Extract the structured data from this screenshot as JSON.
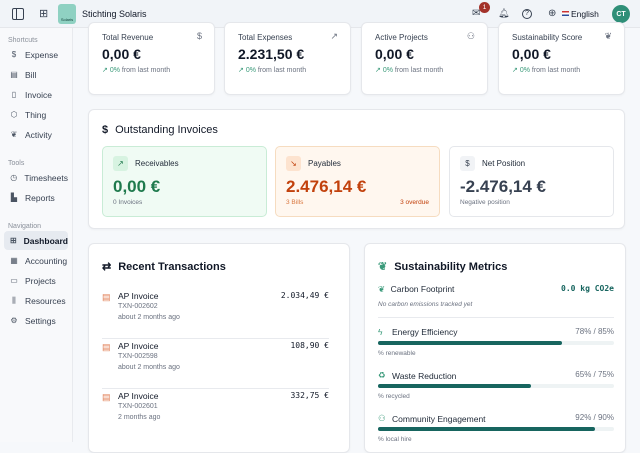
{
  "header": {
    "org_name": "Stichting Solaris",
    "logo_text": "Solaris",
    "mail_badge": "1",
    "language": "English",
    "avatar": "CT"
  },
  "sidebar": {
    "sections": [
      {
        "title": "Shortcuts",
        "items": [
          {
            "label": "Expense",
            "icon": "dollar-circle-icon"
          },
          {
            "label": "Bill",
            "icon": "bill-icon"
          },
          {
            "label": "Invoice",
            "icon": "file-icon"
          },
          {
            "label": "Thing",
            "icon": "box-icon"
          },
          {
            "label": "Activity",
            "icon": "leaf-icon"
          }
        ]
      },
      {
        "title": "Tools",
        "items": [
          {
            "label": "Timesheets",
            "icon": "clock-icon"
          },
          {
            "label": "Reports",
            "icon": "bar-chart-icon"
          }
        ]
      },
      {
        "title": "Navigation",
        "items": [
          {
            "label": "Dashboard",
            "icon": "grid-icon",
            "active": true
          },
          {
            "label": "Accounting",
            "icon": "calculator-icon"
          },
          {
            "label": "Projects",
            "icon": "folder-icon"
          },
          {
            "label": "Resources",
            "icon": "library-icon"
          },
          {
            "label": "Settings",
            "icon": "gear-icon"
          }
        ]
      }
    ]
  },
  "stats": [
    {
      "title": "Total Revenue",
      "value": "0,00 €",
      "change": "0%",
      "change_text": "from last month",
      "icon": "dollar-icon"
    },
    {
      "title": "Total Expenses",
      "value": "2.231,50 €",
      "change": "0%",
      "change_text": "from last month",
      "icon": "trending-up-icon"
    },
    {
      "title": "Active Projects",
      "value": "0,00 €",
      "change": "0%",
      "change_text": "from last month",
      "icon": "users-icon"
    },
    {
      "title": "Sustainability Score",
      "value": "0,00 €",
      "change": "0%",
      "change_text": "from last month",
      "icon": "leaf-icon"
    }
  ],
  "outstanding": {
    "title": "Outstanding Invoices",
    "receivables": {
      "label": "Receivables",
      "value": "0,00 €",
      "note": "0 Invoices"
    },
    "payables": {
      "label": "Payables",
      "value": "2.476,14 €",
      "note": "3 Bills",
      "overdue": "3 overdue"
    },
    "net": {
      "label": "Net Position",
      "value": "-2.476,14 €",
      "note": "Negative position"
    }
  },
  "transactions": {
    "title": "Recent Transactions",
    "items": [
      {
        "type": "AP Invoice",
        "id": "TXN-002602",
        "time": "about 2 months ago",
        "amount": "2.034,49 €"
      },
      {
        "type": "AP Invoice",
        "id": "TXN-002598",
        "time": "about 2 months ago",
        "amount": "108,90 €"
      },
      {
        "type": "AP Invoice",
        "id": "TXN-002601",
        "time": "2 months ago",
        "amount": "332,75 €"
      }
    ]
  },
  "sustainability": {
    "title": "Sustainability Metrics",
    "carbon": {
      "label": "Carbon Footprint",
      "value": "0.0 kg CO2e",
      "note": "No carbon emissions tracked yet"
    },
    "metrics": [
      {
        "label": "Energy Efficiency",
        "display": "78% / 85%",
        "value": 78,
        "target": 85,
        "unit": "% renewable",
        "icon": "zap-icon"
      },
      {
        "label": "Waste Reduction",
        "display": "65% / 75%",
        "value": 65,
        "target": 75,
        "unit": "% recycled",
        "icon": "recycle-icon"
      },
      {
        "label": "Community Engagement",
        "display": "92% / 90%",
        "value": 92,
        "target": 90,
        "unit": "% local hire",
        "icon": "users-icon"
      }
    ]
  },
  "colors": {
    "accent": "#17655f",
    "positive": "#1f7a4d",
    "negative": "#c2410c",
    "overdue": "#c2410c"
  }
}
